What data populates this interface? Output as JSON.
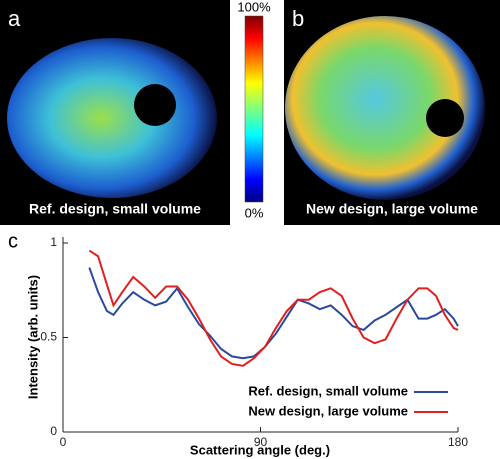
{
  "images": [
    {
      "label": "a",
      "caption": "Ref. design, small volume"
    },
    {
      "label": "b",
      "caption": "New design, large volume"
    }
  ],
  "colorbar": {
    "max_label": "100%",
    "min_label": "0%"
  },
  "chart_data": {
    "type": "line",
    "panel_label": "c",
    "xlabel": "Scattering angle (deg.)",
    "ylabel": "Intensity (arb. units)",
    "x": [
      12,
      16,
      20,
      23,
      27,
      32,
      37,
      42,
      47,
      52,
      57,
      62,
      67,
      72,
      77,
      82,
      87,
      92,
      97,
      102,
      107,
      112,
      117,
      122,
      127,
      132,
      137,
      142,
      147,
      152,
      157,
      162,
      166,
      170,
      174,
      178,
      180
    ],
    "series": [
      {
        "name": "Ref. design, small volume",
        "color": "#2b4a9b",
        "values": [
          0.87,
          0.74,
          0.64,
          0.62,
          0.68,
          0.74,
          0.7,
          0.67,
          0.69,
          0.76,
          0.66,
          0.57,
          0.51,
          0.44,
          0.4,
          0.39,
          0.4,
          0.45,
          0.52,
          0.61,
          0.7,
          0.68,
          0.65,
          0.67,
          0.62,
          0.56,
          0.54,
          0.59,
          0.62,
          0.66,
          0.7,
          0.6,
          0.6,
          0.62,
          0.65,
          0.6,
          0.56
        ]
      },
      {
        "name": "New design, large volume",
        "color": "#e02020",
        "values": [
          0.96,
          0.93,
          0.78,
          0.67,
          0.74,
          0.82,
          0.77,
          0.71,
          0.77,
          0.77,
          0.7,
          0.6,
          0.49,
          0.4,
          0.36,
          0.35,
          0.39,
          0.45,
          0.55,
          0.64,
          0.7,
          0.7,
          0.74,
          0.76,
          0.72,
          0.6,
          0.5,
          0.47,
          0.49,
          0.6,
          0.7,
          0.76,
          0.76,
          0.72,
          0.62,
          0.55,
          0.54
        ]
      }
    ],
    "xlim": [
      0,
      180
    ],
    "xticks": [
      0,
      90,
      180
    ],
    "ylim": [
      0,
      1
    ],
    "yticks": [
      0,
      0.5,
      1
    ],
    "legend": "lower right"
  }
}
